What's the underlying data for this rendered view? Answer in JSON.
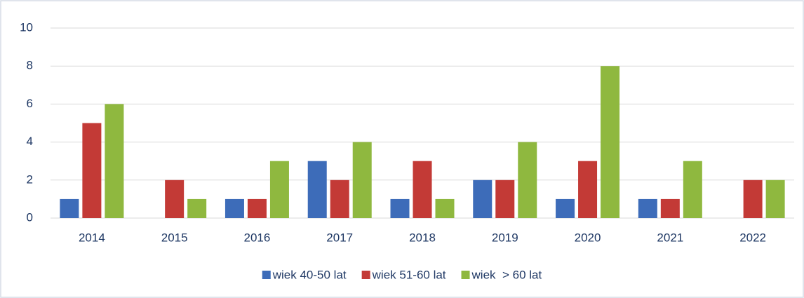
{
  "chart_data": {
    "type": "bar",
    "categories": [
      "2014",
      "2015",
      "2016",
      "2017",
      "2018",
      "2019",
      "2020",
      "2021",
      "2022"
    ],
    "series": [
      {
        "name": "wiek 40-50 lat",
        "color": "#3d6cb9",
        "values": [
          1,
          0,
          1,
          3,
          1,
          2,
          1,
          1,
          0
        ]
      },
      {
        "name": "wiek 51-60 lat",
        "color": "#c33a36",
        "values": [
          5,
          2,
          1,
          2,
          3,
          2,
          3,
          1,
          2
        ]
      },
      {
        "name": "wiek  > 60 lat",
        "color": "#8fb83f",
        "values": [
          6,
          1,
          3,
          4,
          1,
          4,
          8,
          3,
          2
        ]
      }
    ],
    "ylim": [
      0,
      10
    ],
    "yticks": [
      0,
      2,
      4,
      6,
      8,
      10
    ],
    "grid": true,
    "legend": "bottom"
  }
}
